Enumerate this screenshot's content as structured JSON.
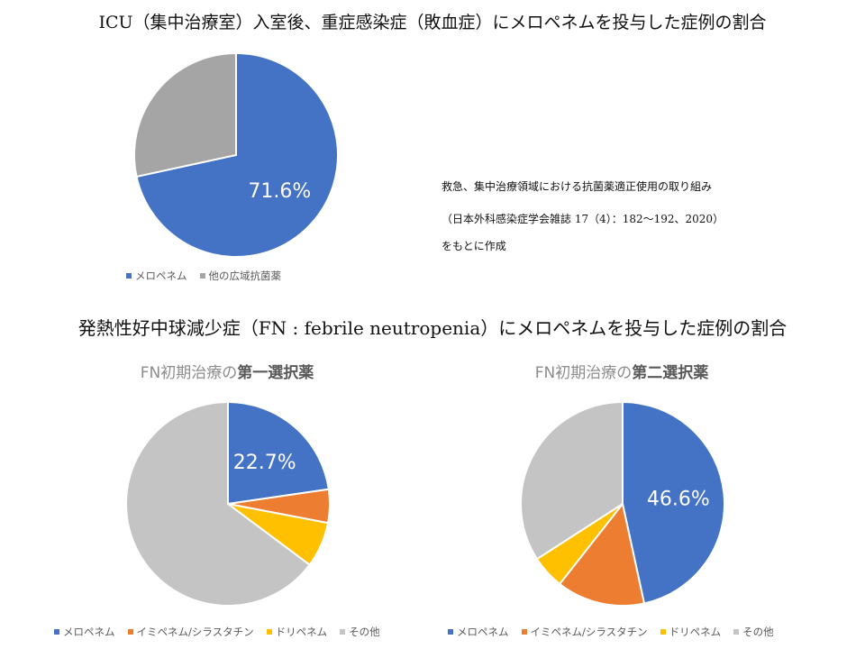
{
  "titles": {
    "top": "ICU（集中治療室）入室後、重症感染症（敗血症）にメロペネムを投与した症例の割合",
    "bottom": "発熱性好中球減少症（FN : febrile neutropenia）にメロペネムを投与した症例の割合",
    "chart2_prefix": "FN初期治療の",
    "chart2_bold": "第一選択薬",
    "chart3_prefix": "FN初期治療の",
    "chart3_bold": "第二選択薬"
  },
  "source": {
    "line1": "救急、集中治療領域における抗菌薬適正使用の取り組み",
    "line2": "（日本外科感染症学会雑誌 17（4）：182〜192、2020）",
    "line3": "をもとに作成"
  },
  "colors": {
    "blue": "#4472c4",
    "gray": "#a5a5a5",
    "orange": "#ed7d31",
    "yellow": "#ffc000",
    "lightgray": "#c4c4c4"
  },
  "chart_data": [
    {
      "type": "pie",
      "title": "",
      "categories": [
        "メロペネム",
        "他の広域抗菌薬"
      ],
      "values": [
        71.6,
        28.4
      ],
      "data_labels": [
        "71.6%",
        ""
      ],
      "legend": "bottom"
    },
    {
      "type": "pie",
      "title": "FN初期治療の第一選択薬",
      "categories": [
        "メロペネム",
        "イミペネム/シラスタチン",
        "ドリペネム",
        "その他"
      ],
      "values": [
        22.7,
        5.3,
        7.2,
        64.8
      ],
      "data_labels": [
        "22.7%",
        "",
        "",
        ""
      ],
      "legend": "bottom"
    },
    {
      "type": "pie",
      "title": "FN初期治療の第二選択薬",
      "categories": [
        "メロペネム",
        "イミペネム/シラスタチン",
        "ドリペネム",
        "その他"
      ],
      "values": [
        46.6,
        14.0,
        5.3,
        34.1
      ],
      "data_labels": [
        "46.6%",
        "",
        "",
        ""
      ],
      "legend": "bottom"
    }
  ]
}
